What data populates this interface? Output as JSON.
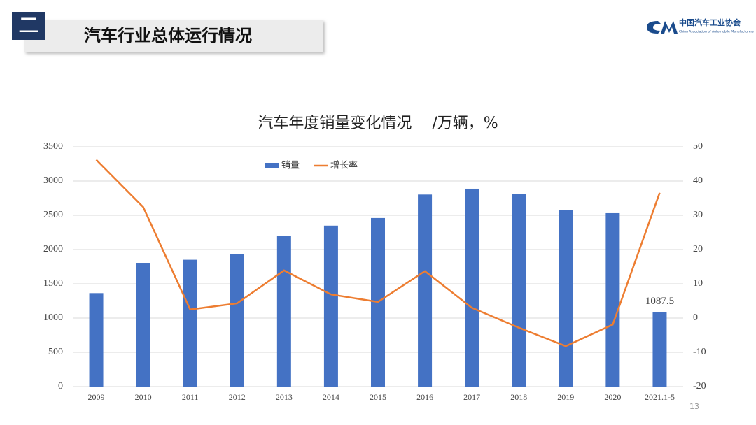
{
  "header": {
    "section": "二",
    "title": "汽车行业总体运行情况"
  },
  "logo": {
    "name": "中国汽车工业协会",
    "english": "China Association of Automobile Manufacturers"
  },
  "page_number": "13",
  "chart_data": {
    "type": "bar",
    "title": "汽车年度销量变化情况　 /万辆，%",
    "categories": [
      "2009",
      "2010",
      "2011",
      "2012",
      "2013",
      "2014",
      "2015",
      "2016",
      "2017",
      "2018",
      "2019",
      "2020",
      "2021.1-5"
    ],
    "series": [
      {
        "name": "销量",
        "type": "bar",
        "color": "#4472c4",
        "values": [
          1364,
          1806,
          1851,
          1931,
          2198,
          2349,
          2460,
          2803,
          2888,
          2808,
          2577,
          2531,
          1087.5
        ]
      },
      {
        "name": "增长率",
        "type": "line",
        "axis": "y2",
        "color": "#ed7d31",
        "values": [
          46.2,
          32.4,
          2.5,
          4.3,
          13.9,
          6.9,
          4.7,
          13.7,
          3.0,
          -2.8,
          -8.2,
          -1.9,
          36.6
        ]
      }
    ],
    "ylim": [
      0,
      3500
    ],
    "yticks": [
      0,
      500,
      1000,
      1500,
      2000,
      2500,
      3000,
      3500
    ],
    "y2lim": [
      -20,
      50
    ],
    "y2ticks": [
      -20,
      -10,
      0,
      10,
      20,
      30,
      40,
      50
    ],
    "grid": true,
    "legend": "top"
  }
}
